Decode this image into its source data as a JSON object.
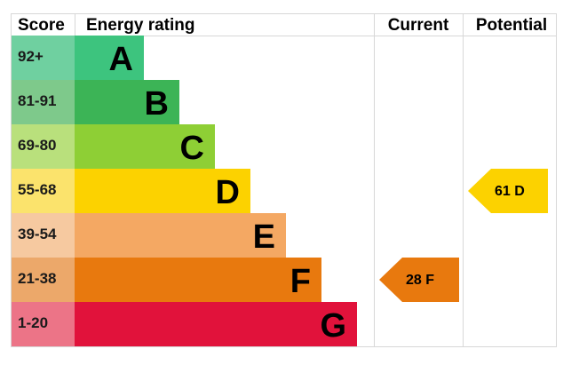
{
  "chart_data": {
    "type": "energy-rating",
    "headers": {
      "score": "Score",
      "rating": "Energy rating",
      "current": "Current",
      "potential": "Potential"
    },
    "bands": [
      {
        "score": "92+",
        "letter": "A",
        "band_color": "#3dc47e",
        "score_color": "#6fd0a0"
      },
      {
        "score": "81-91",
        "letter": "B",
        "band_color": "#3cb456",
        "score_color": "#7ec98b"
      },
      {
        "score": "69-80",
        "letter": "C",
        "band_color": "#8ecf35",
        "score_color": "#b9e07c"
      },
      {
        "score": "55-68",
        "letter": "D",
        "band_color": "#fcd200",
        "score_color": "#fbe36c"
      },
      {
        "score": "39-54",
        "letter": "E",
        "band_color": "#f4a863",
        "score_color": "#f6c9a0"
      },
      {
        "score": "21-38",
        "letter": "F",
        "band_color": "#e8790e",
        "score_color": "#eca86a"
      },
      {
        "score": "1-20",
        "letter": "G",
        "band_color": "#e1123b",
        "score_color": "#ec7487"
      }
    ],
    "current": {
      "value": 28,
      "letter": "F",
      "label": "28  F",
      "color": "#e8790e"
    },
    "potential": {
      "value": 61,
      "letter": "D",
      "label": "61  D",
      "color": "#fcd200"
    }
  }
}
